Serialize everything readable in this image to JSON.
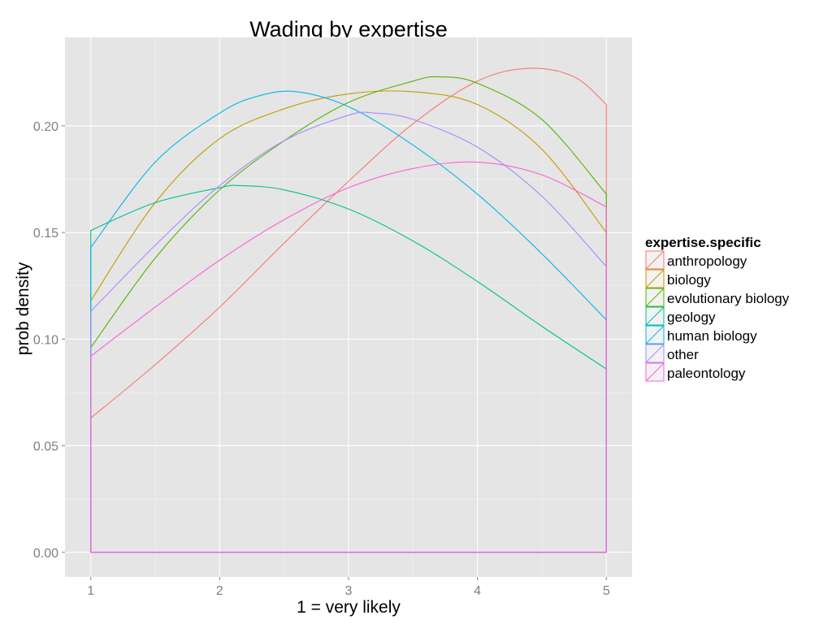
{
  "chart_data": {
    "type": "line",
    "title": "Wading  by expertise",
    "xlabel": "1 = very likely",
    "ylabel": "prob density",
    "xlim": [
      0.8,
      5.2
    ],
    "ylim": [
      -0.0115,
      0.2415
    ],
    "x_ticks": [
      1,
      2,
      3,
      4,
      5
    ],
    "x_tick_labels": [
      "1",
      "2",
      "3",
      "4",
      "5"
    ],
    "y_ticks": [
      0,
      0.05,
      0.1,
      0.15,
      0.2
    ],
    "y_tick_labels": [
      "0.00",
      "0.05",
      "0.10",
      "0.15",
      "0.20"
    ],
    "grid": true,
    "legend": {
      "title": "expertise.specific",
      "position": "right"
    },
    "x_range": [
      1,
      5
    ],
    "series": [
      {
        "name": "anthropology",
        "color": "#F8766D",
        "x": [
          1,
          1.5,
          2,
          2.5,
          3,
          3.5,
          4,
          4.4,
          4.75,
          5
        ],
        "y": [
          0.063,
          0.088,
          0.115,
          0.145,
          0.174,
          0.201,
          0.221,
          0.227,
          0.223,
          0.21
        ]
      },
      {
        "name": "biology",
        "color": "#C49A00",
        "x": [
          1,
          1.5,
          2,
          2.5,
          3,
          3.5,
          4,
          4.5,
          5
        ],
        "y": [
          0.118,
          0.164,
          0.194,
          0.208,
          0.215,
          0.216,
          0.21,
          0.189,
          0.15
        ]
      },
      {
        "name": "evolutionary biology",
        "color": "#53B400",
        "x": [
          1,
          1.5,
          2,
          2.5,
          3,
          3.5,
          3.7,
          4,
          4.5,
          5
        ],
        "y": [
          0.096,
          0.138,
          0.17,
          0.193,
          0.211,
          0.221,
          0.223,
          0.22,
          0.203,
          0.168
        ]
      },
      {
        "name": "geology",
        "color": "#00C094",
        "x": [
          1,
          1.5,
          2,
          2.15,
          2.5,
          3,
          3.5,
          4,
          4.5,
          5
        ],
        "y": [
          0.151,
          0.164,
          0.171,
          0.172,
          0.17,
          0.161,
          0.146,
          0.127,
          0.106,
          0.086
        ]
      },
      {
        "name": "human biology",
        "color": "#00B6EB",
        "x": [
          1,
          1.5,
          2,
          2.3,
          2.6,
          3,
          3.5,
          4,
          4.5,
          5
        ],
        "y": [
          0.143,
          0.183,
          0.206,
          0.214,
          0.216,
          0.209,
          0.191,
          0.168,
          0.14,
          0.109
        ]
      },
      {
        "name": "other",
        "color": "#A58AFF",
        "x": [
          1,
          1.5,
          2,
          2.5,
          3,
          3.2,
          3.5,
          4,
          4.5,
          5
        ],
        "y": [
          0.113,
          0.144,
          0.172,
          0.193,
          0.205,
          0.206,
          0.203,
          0.19,
          0.167,
          0.134
        ]
      },
      {
        "name": "paleontology",
        "color": "#FB61D7",
        "x": [
          1,
          1.5,
          2,
          2.5,
          3,
          3.5,
          4,
          4.5,
          5
        ],
        "y": [
          0.092,
          0.115,
          0.137,
          0.156,
          0.171,
          0.18,
          0.183,
          0.177,
          0.162
        ]
      }
    ]
  }
}
